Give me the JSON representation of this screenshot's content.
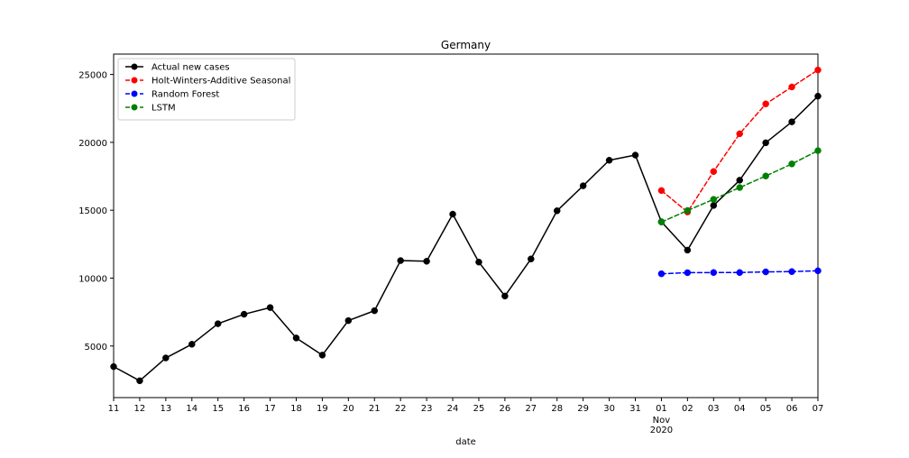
{
  "chart_data": {
    "type": "line",
    "title": "Germany",
    "xlabel": "date",
    "ylabel": "",
    "ylim": [
      1200,
      26500
    ],
    "yticks": [
      5000,
      10000,
      15000,
      20000,
      25000
    ],
    "x_date_range": [
      "2020-10-11",
      "2020-11-07"
    ],
    "x": [
      "2020-10-11",
      "2020-10-12",
      "2020-10-13",
      "2020-10-14",
      "2020-10-15",
      "2020-10-16",
      "2020-10-17",
      "2020-10-18",
      "2020-10-19",
      "2020-10-20",
      "2020-10-21",
      "2020-10-22",
      "2020-10-23",
      "2020-10-24",
      "2020-10-25",
      "2020-10-26",
      "2020-10-27",
      "2020-10-28",
      "2020-10-29",
      "2020-10-30",
      "2020-10-31",
      "2020-11-01",
      "2020-11-02",
      "2020-11-03",
      "2020-11-04",
      "2020-11-05",
      "2020-11-06",
      "2020-11-07"
    ],
    "xtick_labels": [
      {
        "date": "2020-10-11",
        "label": "11"
      },
      {
        "date": "2020-10-12",
        "label": "12"
      },
      {
        "date": "2020-10-13",
        "label": "13"
      },
      {
        "date": "2020-10-14",
        "label": "14"
      },
      {
        "date": "2020-10-15",
        "label": "15"
      },
      {
        "date": "2020-10-16",
        "label": "16"
      },
      {
        "date": "2020-10-17",
        "label": "17"
      },
      {
        "date": "2020-10-18",
        "label": "18"
      },
      {
        "date": "2020-10-19",
        "label": "19"
      },
      {
        "date": "2020-10-20",
        "label": "20"
      },
      {
        "date": "2020-10-21",
        "label": "21"
      },
      {
        "date": "2020-10-22",
        "label": "22"
      },
      {
        "date": "2020-10-23",
        "label": "23"
      },
      {
        "date": "2020-10-24",
        "label": "24"
      },
      {
        "date": "2020-10-25",
        "label": "25"
      },
      {
        "date": "2020-10-26",
        "label": "26"
      },
      {
        "date": "2020-10-27",
        "label": "27"
      },
      {
        "date": "2020-10-28",
        "label": "28"
      },
      {
        "date": "2020-10-29",
        "label": "29"
      },
      {
        "date": "2020-10-30",
        "label": "30"
      },
      {
        "date": "2020-10-31",
        "label": "31"
      },
      {
        "date": "2020-11-01",
        "label": "01"
      },
      {
        "date": "2020-11-02",
        "label": "02"
      },
      {
        "date": "2020-11-03",
        "label": "03"
      },
      {
        "date": "2020-11-04",
        "label": "04"
      },
      {
        "date": "2020-11-05",
        "label": "05"
      },
      {
        "date": "2020-11-06",
        "label": "06"
      },
      {
        "date": "2020-11-07",
        "label": "07"
      }
    ],
    "x_sublabel": {
      "date": "2020-11-01",
      "lines": [
        "Nov",
        "2020"
      ]
    },
    "grid": false,
    "legend_position": "upper-left",
    "series": [
      {
        "name": "Actual new cases",
        "color": "#000000",
        "style": "solid",
        "x": [
          "2020-10-11",
          "2020-10-12",
          "2020-10-13",
          "2020-10-14",
          "2020-10-15",
          "2020-10-16",
          "2020-10-17",
          "2020-10-18",
          "2020-10-19",
          "2020-10-20",
          "2020-10-21",
          "2020-10-22",
          "2020-10-23",
          "2020-10-24",
          "2020-10-25",
          "2020-10-26",
          "2020-10-27",
          "2020-10-28",
          "2020-10-29",
          "2020-10-30",
          "2020-10-31",
          "2020-11-01",
          "2020-11-02",
          "2020-11-03",
          "2020-11-04",
          "2020-11-05",
          "2020-11-06",
          "2020-11-07"
        ],
        "values": [
          3480,
          2440,
          4120,
          5130,
          6640,
          7340,
          7830,
          5590,
          4330,
          6870,
          7600,
          11290,
          11240,
          14710,
          11180,
          8680,
          11410,
          14960,
          16800,
          18680,
          19060,
          14150,
          12060,
          15350,
          17210,
          19970,
          21510,
          23400
        ]
      },
      {
        "name": "Holt-Winters-Additive Seasonal",
        "color": "#ff0000",
        "style": "dashed",
        "x": [
          "2020-11-01",
          "2020-11-02",
          "2020-11-03",
          "2020-11-04",
          "2020-11-05",
          "2020-11-06",
          "2020-11-07"
        ],
        "values": [
          16450,
          14870,
          17850,
          20630,
          22830,
          24080,
          25330
        ]
      },
      {
        "name": "Random Forest",
        "color": "#0000ff",
        "style": "dashed",
        "x": [
          "2020-11-01",
          "2020-11-02",
          "2020-11-03",
          "2020-11-04",
          "2020-11-05",
          "2020-11-06",
          "2020-11-07"
        ],
        "values": [
          10320,
          10400,
          10410,
          10410,
          10460,
          10480,
          10540
        ]
      },
      {
        "name": "LSTM",
        "color": "#008000",
        "style": "dashed",
        "x": [
          "2020-11-01",
          "2020-11-02",
          "2020-11-03",
          "2020-11-04",
          "2020-11-05",
          "2020-11-06",
          "2020-11-07"
        ],
        "values": [
          14130,
          14980,
          15800,
          16670,
          17520,
          18410,
          19390
        ]
      }
    ]
  }
}
